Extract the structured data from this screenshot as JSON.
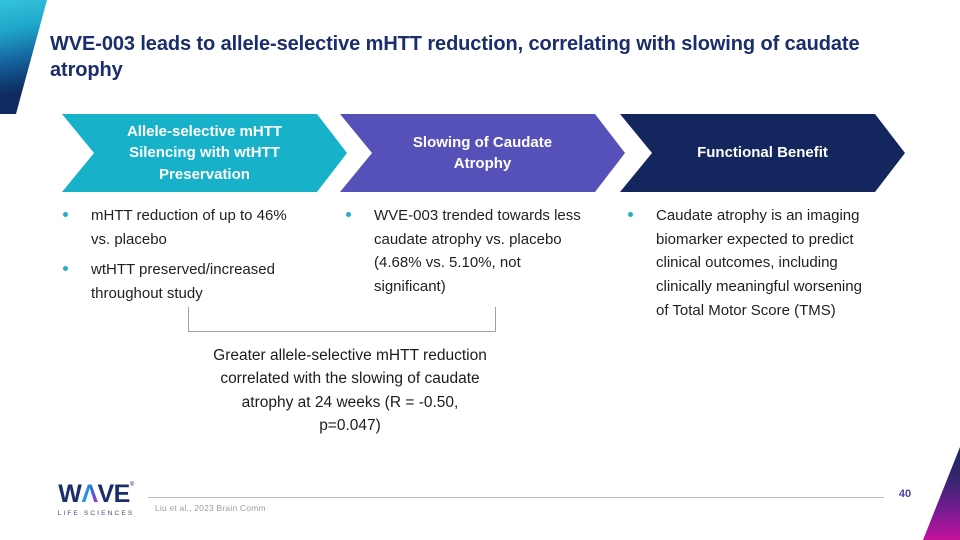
{
  "slide": {
    "title": "WVE-003 leads to allele-selective mHTT reduction, correlating with slowing of caudate atrophy",
    "page_number": "40",
    "citation": "Liu et al., 2023 Brain Comm"
  },
  "colors": {
    "chevron_teal": "#17b2ca",
    "chevron_purple": "#5551b8",
    "chevron_navy": "#13265e",
    "title_navy": "#1b2d6b",
    "bullet_dot_teal": "#2aabc5",
    "page_number_indigo": "#4643a6",
    "corner_magenta": "#c3129b"
  },
  "chevrons": [
    {
      "label": "Allele-selective mHTT Silencing with wtHTT Preservation",
      "color": "#17b2ca"
    },
    {
      "label": "Slowing of Caudate Atrophy",
      "color": "#5551b8"
    },
    {
      "label": "Functional Benefit",
      "color": "#13265e"
    }
  ],
  "columns": [
    {
      "bullets": [
        "mHTT reduction of up to 46% vs. placebo",
        "wtHTT preserved/increased throughout study"
      ]
    },
    {
      "bullets": [
        "WVE-003 trended towards less caudate atrophy vs. placebo (4.68% vs. 5.10%, not significant)"
      ]
    },
    {
      "bullets": [
        "Caudate atrophy is an imaging biomarker expected to predict clinical outcomes, including clinically meaningful worsening of Total Motor Score (TMS)"
      ]
    }
  ],
  "callout": {
    "text": "Greater allele-selective mHTT reduction correlated with the slowing of caudate atrophy at 24 weeks (R = -0.50, p=0.047)"
  },
  "logo": {
    "brand_w": "W",
    "brand_a": "Λ",
    "brand_ve": "VE",
    "reg": "®",
    "sub": "LIFE SCIENCES"
  }
}
